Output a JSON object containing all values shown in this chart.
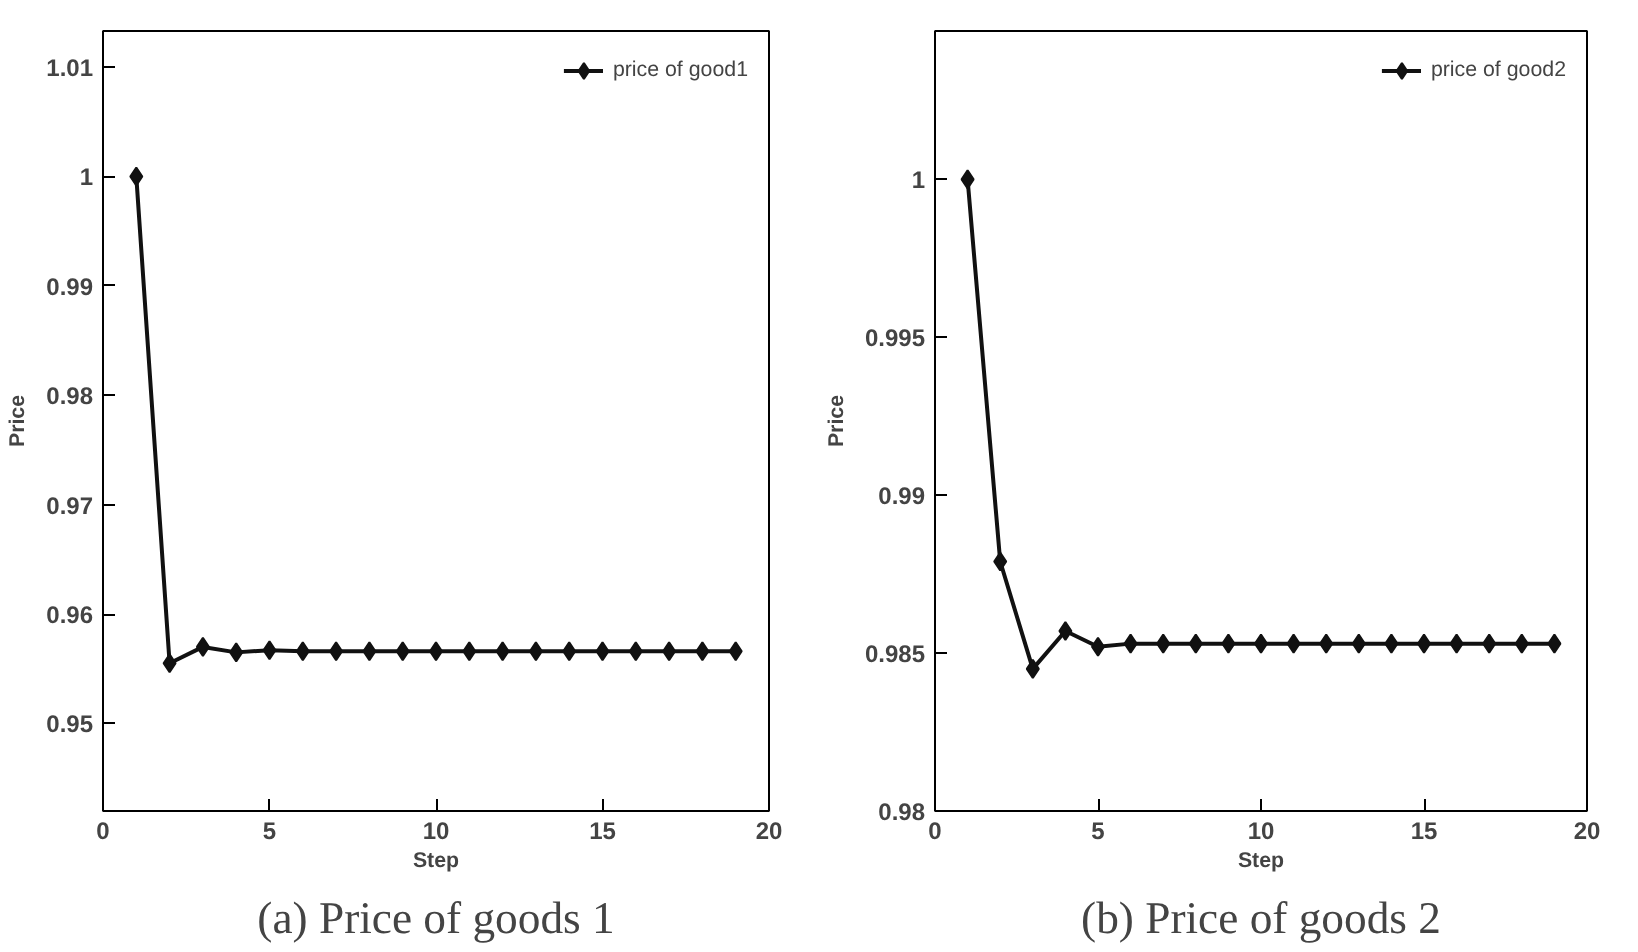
{
  "chart_data": [
    {
      "type": "line",
      "title": "(a) Price of goods 1",
      "xlabel": "Step",
      "ylabel": "Price",
      "x": [
        1,
        2,
        3,
        4,
        5,
        6,
        7,
        8,
        9,
        10,
        11,
        12,
        13,
        14,
        15,
        16,
        17,
        18,
        19
      ],
      "xlim": [
        0,
        20
      ],
      "xticks": [
        0,
        5,
        10,
        15,
        20
      ],
      "ylim": [
        0.942,
        1.0133
      ],
      "yticks": [
        0.95,
        0.96,
        0.97,
        0.98,
        0.99,
        1,
        1.01
      ],
      "grid": false,
      "legend": "top right",
      "marker": "diamond",
      "line_style": "solid",
      "series": [
        {
          "name": "price of good1",
          "color": "#111111",
          "values": [
            1.0,
            0.9555,
            0.957,
            0.9565,
            0.9567,
            0.9566,
            0.9566,
            0.9566,
            0.9566,
            0.9566,
            0.9566,
            0.9566,
            0.9566,
            0.9566,
            0.9566,
            0.9566,
            0.9566,
            0.9566,
            0.9566
          ]
        }
      ]
    },
    {
      "type": "line",
      "title": "(b) Price of goods 2",
      "xlabel": "Step",
      "ylabel": "Price",
      "x": [
        1,
        2,
        3,
        4,
        5,
        6,
        7,
        8,
        9,
        10,
        11,
        12,
        13,
        14,
        15,
        16,
        17,
        18,
        19
      ],
      "xlim": [
        0,
        20
      ],
      "xticks": [
        0,
        5,
        10,
        15,
        20
      ],
      "ylim": [
        0.98,
        1.0047
      ],
      "yticks": [
        0.98,
        0.985,
        0.99,
        0.995,
        1
      ],
      "grid": false,
      "legend": "top right",
      "marker": "diamond",
      "line_style": "solid",
      "series": [
        {
          "name": "price of good2",
          "color": "#111111",
          "values": [
            1.0,
            0.9879,
            0.9845,
            0.9857,
            0.9852,
            0.9853,
            0.9853,
            0.9853,
            0.9853,
            0.9853,
            0.9853,
            0.9853,
            0.9853,
            0.9853,
            0.9853,
            0.9853,
            0.9853,
            0.9853,
            0.9853
          ]
        }
      ]
    }
  ]
}
